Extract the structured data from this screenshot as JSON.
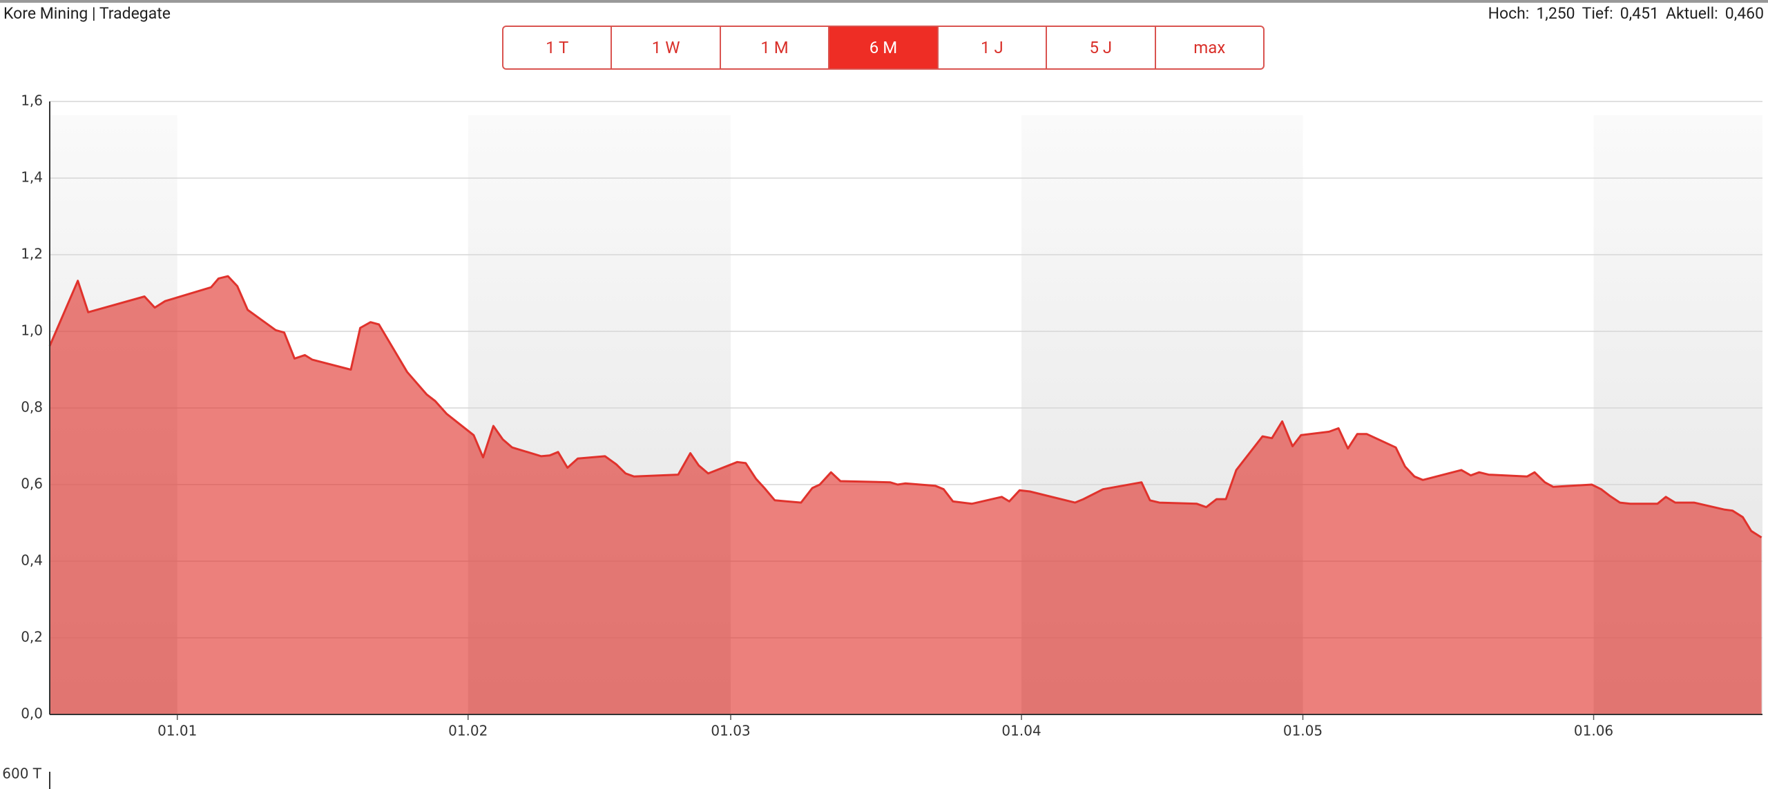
{
  "header": {
    "title": "Kore Mining | Tradegate",
    "stats": [
      {
        "label": "Hoch:",
        "value": "1,250"
      },
      {
        "label": "Tief:",
        "value": "0,451"
      },
      {
        "label": "Aktuell:",
        "value": "0,460"
      }
    ],
    "ranges": [
      "1 T",
      "1 W",
      "1 M",
      "6 M",
      "1 J",
      "5 J",
      "max"
    ],
    "active_range": 3
  },
  "chart_data": {
    "type": "area",
    "color": "#e0322c",
    "grid": true,
    "shaded_months": true,
    "x": [
      -13.6,
      -10.6,
      -9.5,
      -3.5,
      -2.4,
      -1.3,
      3.6,
      4.4,
      5.4,
      6.4,
      7.5,
      10.5,
      11.4,
      12.5,
      13.6,
      14.4,
      18.5,
      19.5,
      20.6,
      21.5,
      24.5,
      26.6,
      27.5,
      28.7,
      31.6,
      32.6,
      33.7,
      34.7,
      35.7,
      38.8,
      39.7,
      40.6,
      41.6,
      42.7,
      45.6,
      46.8,
      47.8,
      48.7,
      53.4,
      54.7,
      55.6,
      56.6,
      59.7,
      60.6,
      61.7,
      62.6,
      63.7,
      66.5,
      67.7,
      68.5,
      69.7,
      70.7,
      76,
      76.8,
      77.6,
      80.8,
      81.7,
      82.7,
      84.7,
      87.9,
      88.7,
      89.8,
      90.9,
      95.7,
      96.6,
      98.7,
      102.8,
      103.7,
      104.7,
      108.7,
      109.7,
      110.8,
      111.8,
      112.9,
      115.7,
      116.7,
      117.8,
      118.9,
      119.8,
      122.8,
      123.8,
      124.8,
      125.8,
      126.8,
      129.9,
      130.9,
      131.9,
      132.8,
      136.9,
      137.9,
      138.8,
      139.8,
      143.9,
      144.7,
      145.8,
      146.7,
      150.8,
      151.8,
      152.7,
      153.8,
      154.9,
      157.8,
      158.7,
      159.7,
      161.7,
      164.9,
      165.8,
      166.9,
      167.8,
      168.9
    ],
    "values": [
      0.962,
      1.132,
      1.05,
      1.091,
      1.062,
      1.079,
      1.115,
      1.138,
      1.144,
      1.118,
      1.056,
      1.003,
      0.997,
      0.929,
      0.938,
      0.926,
      0.9,
      1.009,
      1.024,
      1.018,
      0.894,
      0.835,
      0.818,
      0.785,
      0.729,
      0.671,
      0.753,
      0.718,
      0.697,
      0.674,
      0.676,
      0.685,
      0.644,
      0.668,
      0.674,
      0.653,
      0.629,
      0.621,
      0.626,
      0.682,
      0.65,
      0.629,
      0.659,
      0.656,
      0.615,
      0.591,
      0.559,
      0.553,
      0.591,
      0.6,
      0.632,
      0.609,
      0.606,
      0.6,
      0.603,
      0.597,
      0.588,
      0.556,
      0.55,
      0.568,
      0.556,
      0.585,
      0.582,
      0.553,
      0.562,
      0.588,
      0.606,
      0.559,
      0.553,
      0.55,
      0.541,
      0.562,
      0.562,
      0.638,
      0.726,
      0.721,
      0.765,
      0.7,
      0.729,
      0.738,
      0.747,
      0.694,
      0.732,
      0.732,
      0.697,
      0.647,
      0.621,
      0.612,
      0.638,
      0.624,
      0.632,
      0.626,
      0.621,
      0.632,
      0.606,
      0.594,
      0.6,
      0.588,
      0.571,
      0.553,
      0.55,
      0.55,
      0.568,
      0.553,
      0.553,
      0.535,
      0.532,
      0.515,
      0.479,
      0.462
    ],
    "xlim": [
      -13.6,
      169
    ],
    "xticks": [
      {
        "value": 0,
        "label": "01.01"
      },
      {
        "value": 31,
        "label": "01.02"
      },
      {
        "value": 59,
        "label": "01.03"
      },
      {
        "value": 90,
        "label": "01.04"
      },
      {
        "value": 120,
        "label": "01.05"
      },
      {
        "value": 151,
        "label": "01.06"
      }
    ],
    "ylim": [
      0,
      1.6
    ],
    "yticks": [
      {
        "value": 0,
        "label": "0,0"
      },
      {
        "value": 0.2,
        "label": "0,2"
      },
      {
        "value": 0.4,
        "label": "0,4"
      },
      {
        "value": 0.6,
        "label": "0,6"
      },
      {
        "value": 0.8,
        "label": "0,8"
      },
      {
        "value": 1.0,
        "label": "1,0"
      },
      {
        "value": 1.2,
        "label": "1,2"
      },
      {
        "value": 1.4,
        "label": "1,4"
      },
      {
        "value": 1.6,
        "label": "1,6"
      }
    ]
  },
  "volume_axis_label": "600 T"
}
